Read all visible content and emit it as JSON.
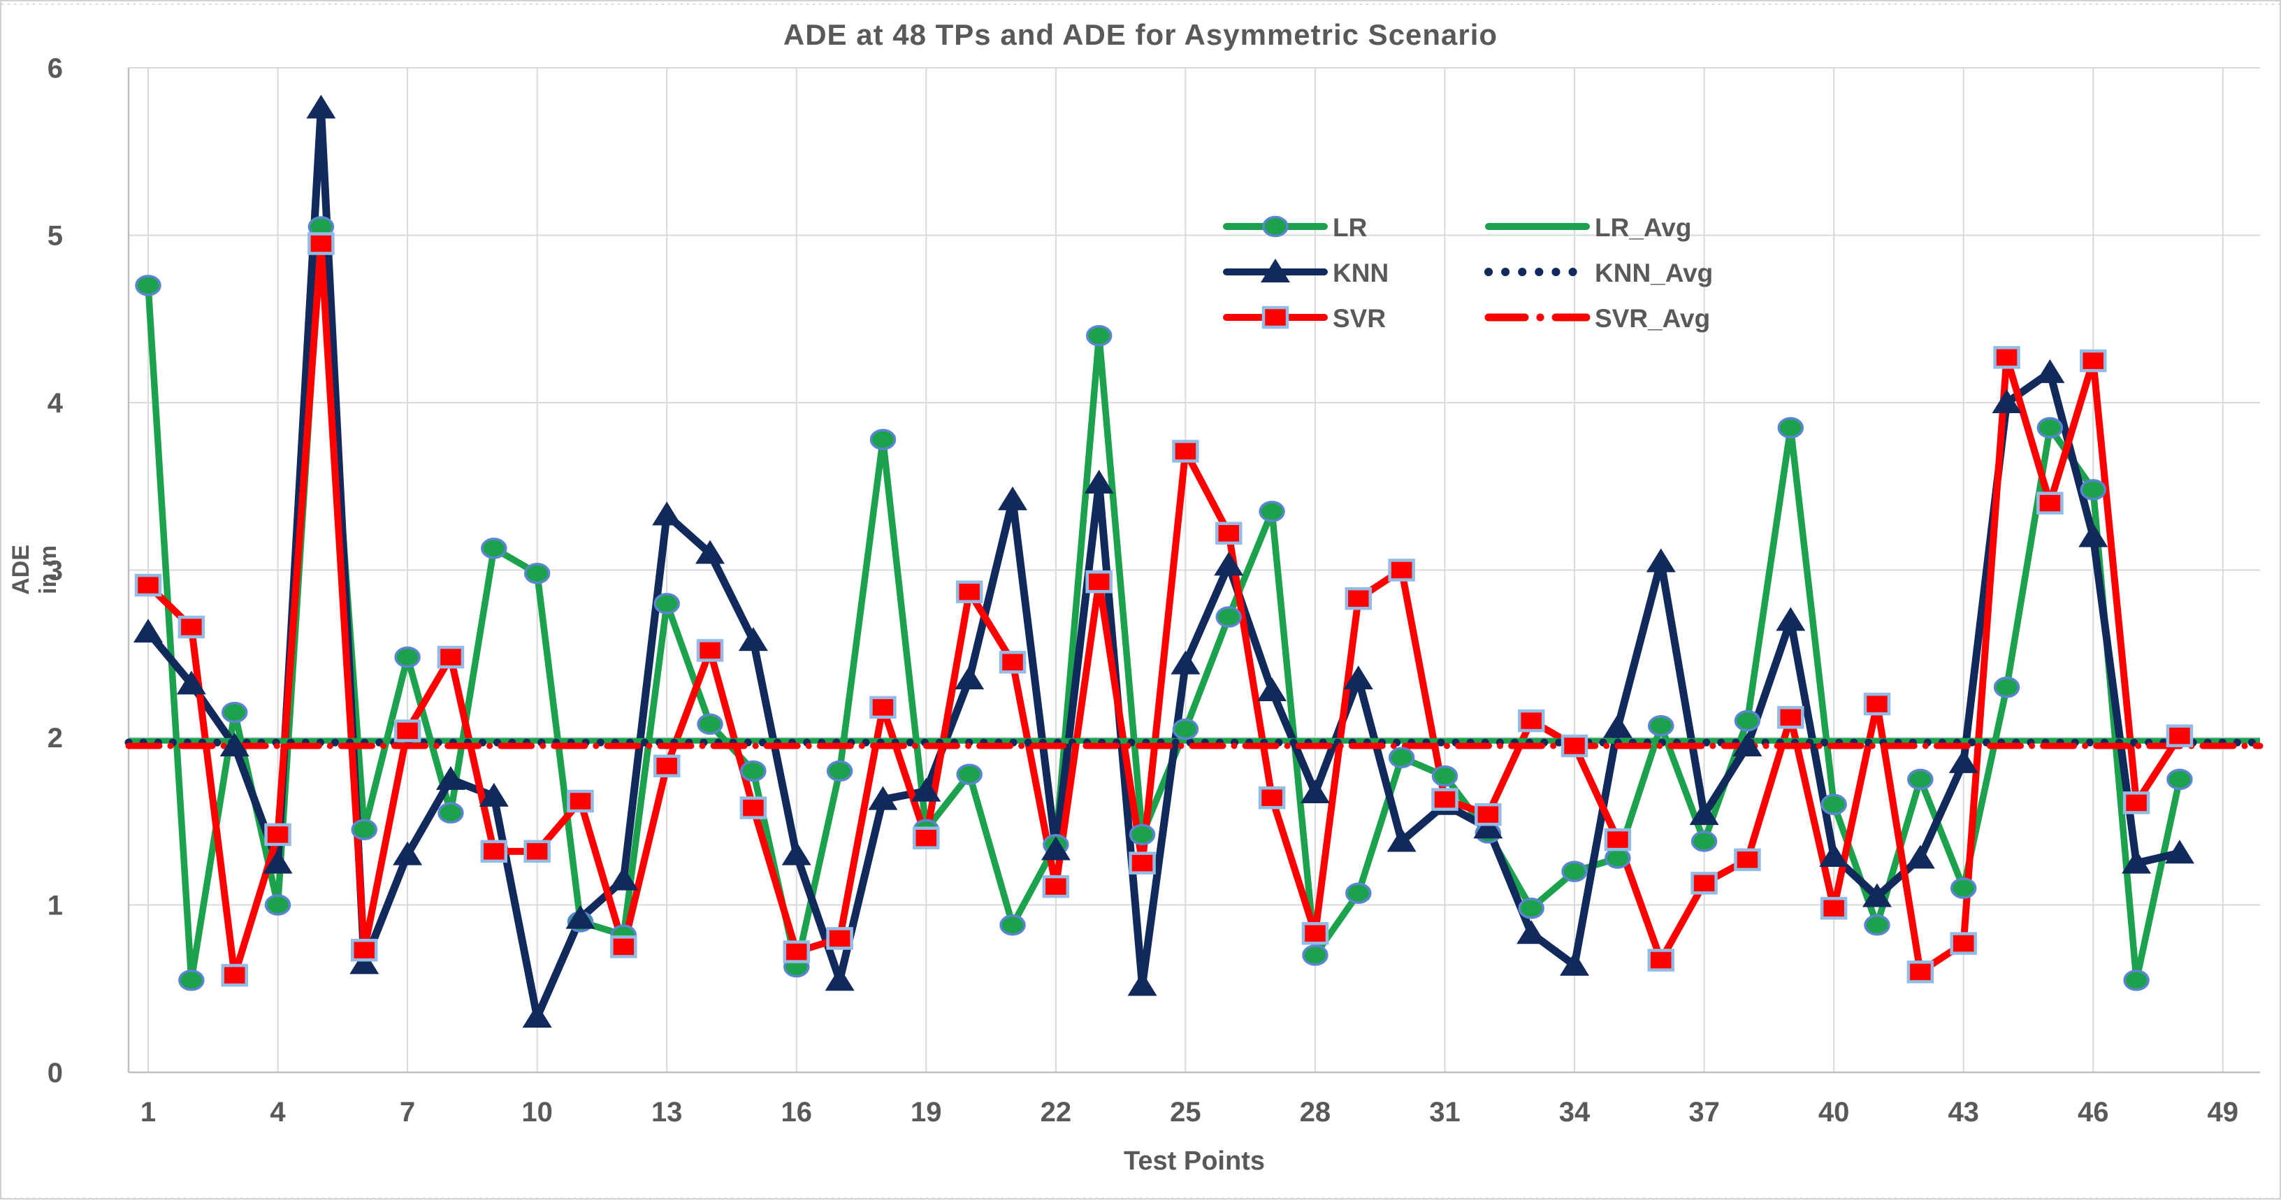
{
  "title": "ADE at 48 TPs and ADE for Asymmetric Scenario",
  "x_axis": {
    "label": "Test Points",
    "min": 1,
    "max": 49,
    "ticks": [
      1,
      4,
      7,
      10,
      13,
      16,
      19,
      22,
      25,
      28,
      31,
      34,
      37,
      40,
      43,
      46,
      49
    ]
  },
  "y_axis": {
    "label": "ADE in m",
    "min": 0,
    "max": 6,
    "ticks": [
      0,
      1,
      2,
      3,
      4,
      5,
      6
    ]
  },
  "colors": {
    "lr_green": "#1ca24c",
    "knn_navy": "#12295b",
    "svr_red": "#fe0000",
    "circle_stroke": "#5b84d1",
    "square_stroke": "#92bbe6",
    "text_gray": "#595959",
    "gridline": "#d9d9d9",
    "axis_line": "#bfbfbf"
  },
  "legend": {
    "rows": [
      {
        "series": {
          "label": "LR",
          "marker": "circle"
        },
        "avg": {
          "label": "LR_Avg",
          "style": "solid"
        }
      },
      {
        "series": {
          "label": "KNN",
          "marker": "triangle"
        },
        "avg": {
          "label": "KNN_Avg",
          "style": "dotted"
        }
      },
      {
        "series": {
          "label": "SVR",
          "marker": "square"
        },
        "avg": {
          "label": "SVR_Avg",
          "style": "dashdot"
        }
      }
    ]
  },
  "chart_data": {
    "type": "line",
    "title": "ADE at 48 TPs and ADE for Asymmetric Scenario",
    "xlabel": "Test Points",
    "ylabel": "ADE in m",
    "xlim": [
      1,
      49
    ],
    "ylim": [
      0,
      6
    ],
    "grid": true,
    "legend_position": "top-right-inside",
    "x": [
      1,
      2,
      3,
      4,
      5,
      6,
      7,
      8,
      9,
      10,
      11,
      12,
      13,
      14,
      15,
      16,
      17,
      18,
      19,
      20,
      21,
      22,
      23,
      24,
      25,
      26,
      27,
      28,
      29,
      30,
      31,
      32,
      33,
      34,
      35,
      36,
      37,
      38,
      39,
      40,
      41,
      42,
      43,
      44,
      45,
      46,
      47,
      48
    ],
    "series": [
      {
        "name": "LR",
        "color": "#1ca24c",
        "marker": "circle",
        "values": [
          4.7,
          0.55,
          2.15,
          1.0,
          5.05,
          1.45,
          2.48,
          1.55,
          3.13,
          2.98,
          0.9,
          0.82,
          2.8,
          2.08,
          1.8,
          0.63,
          1.8,
          3.78,
          1.45,
          1.78,
          0.88,
          1.36,
          4.4,
          1.42,
          2.05,
          2.72,
          3.35,
          0.7,
          1.07,
          1.88,
          1.77,
          1.43,
          0.98,
          1.2,
          1.28,
          2.07,
          1.38,
          2.1,
          3.85,
          1.6,
          0.88,
          1.75,
          1.1,
          2.3,
          3.85,
          3.48,
          0.55,
          1.75
        ]
      },
      {
        "name": "KNN",
        "color": "#12295b",
        "marker": "triangle",
        "values": [
          2.63,
          2.32,
          1.95,
          1.25,
          5.76,
          0.65,
          1.3,
          1.75,
          1.65,
          0.33,
          0.92,
          1.15,
          3.33,
          3.1,
          2.58,
          1.3,
          0.55,
          1.63,
          1.68,
          2.35,
          3.42,
          1.33,
          3.52,
          0.52,
          2.44,
          3.03,
          2.28,
          1.67,
          2.35,
          1.38,
          1.6,
          1.46,
          0.83,
          0.64,
          2.06,
          3.05,
          1.54,
          1.95,
          2.7,
          1.29,
          1.05,
          1.28,
          1.85,
          4.0,
          4.18,
          3.2,
          1.25,
          1.31
        ]
      },
      {
        "name": "SVR",
        "color": "#fe0000",
        "marker": "square",
        "values": [
          2.91,
          2.66,
          0.58,
          1.42,
          4.95,
          0.73,
          2.04,
          2.48,
          1.32,
          1.32,
          1.62,
          0.75,
          1.83,
          2.52,
          1.58,
          0.72,
          0.8,
          2.18,
          1.4,
          2.87,
          2.45,
          1.11,
          2.93,
          1.25,
          3.71,
          3.22,
          1.64,
          0.83,
          2.83,
          3.0,
          1.63,
          1.54,
          2.1,
          1.95,
          1.39,
          0.67,
          1.13,
          1.27,
          2.12,
          0.98,
          2.2,
          0.6,
          0.77,
          4.27,
          3.4,
          4.25,
          1.61,
          2.01
        ]
      }
    ],
    "avg_lines": [
      {
        "name": "LR_Avg",
        "value": 1.98,
        "color": "#1ca24c",
        "style": "solid"
      },
      {
        "name": "KNN_Avg",
        "value": 1.97,
        "color": "#12295b",
        "style": "dotted"
      },
      {
        "name": "SVR_Avg",
        "value": 1.95,
        "color": "#fe0000",
        "style": "dashdot"
      }
    ]
  }
}
